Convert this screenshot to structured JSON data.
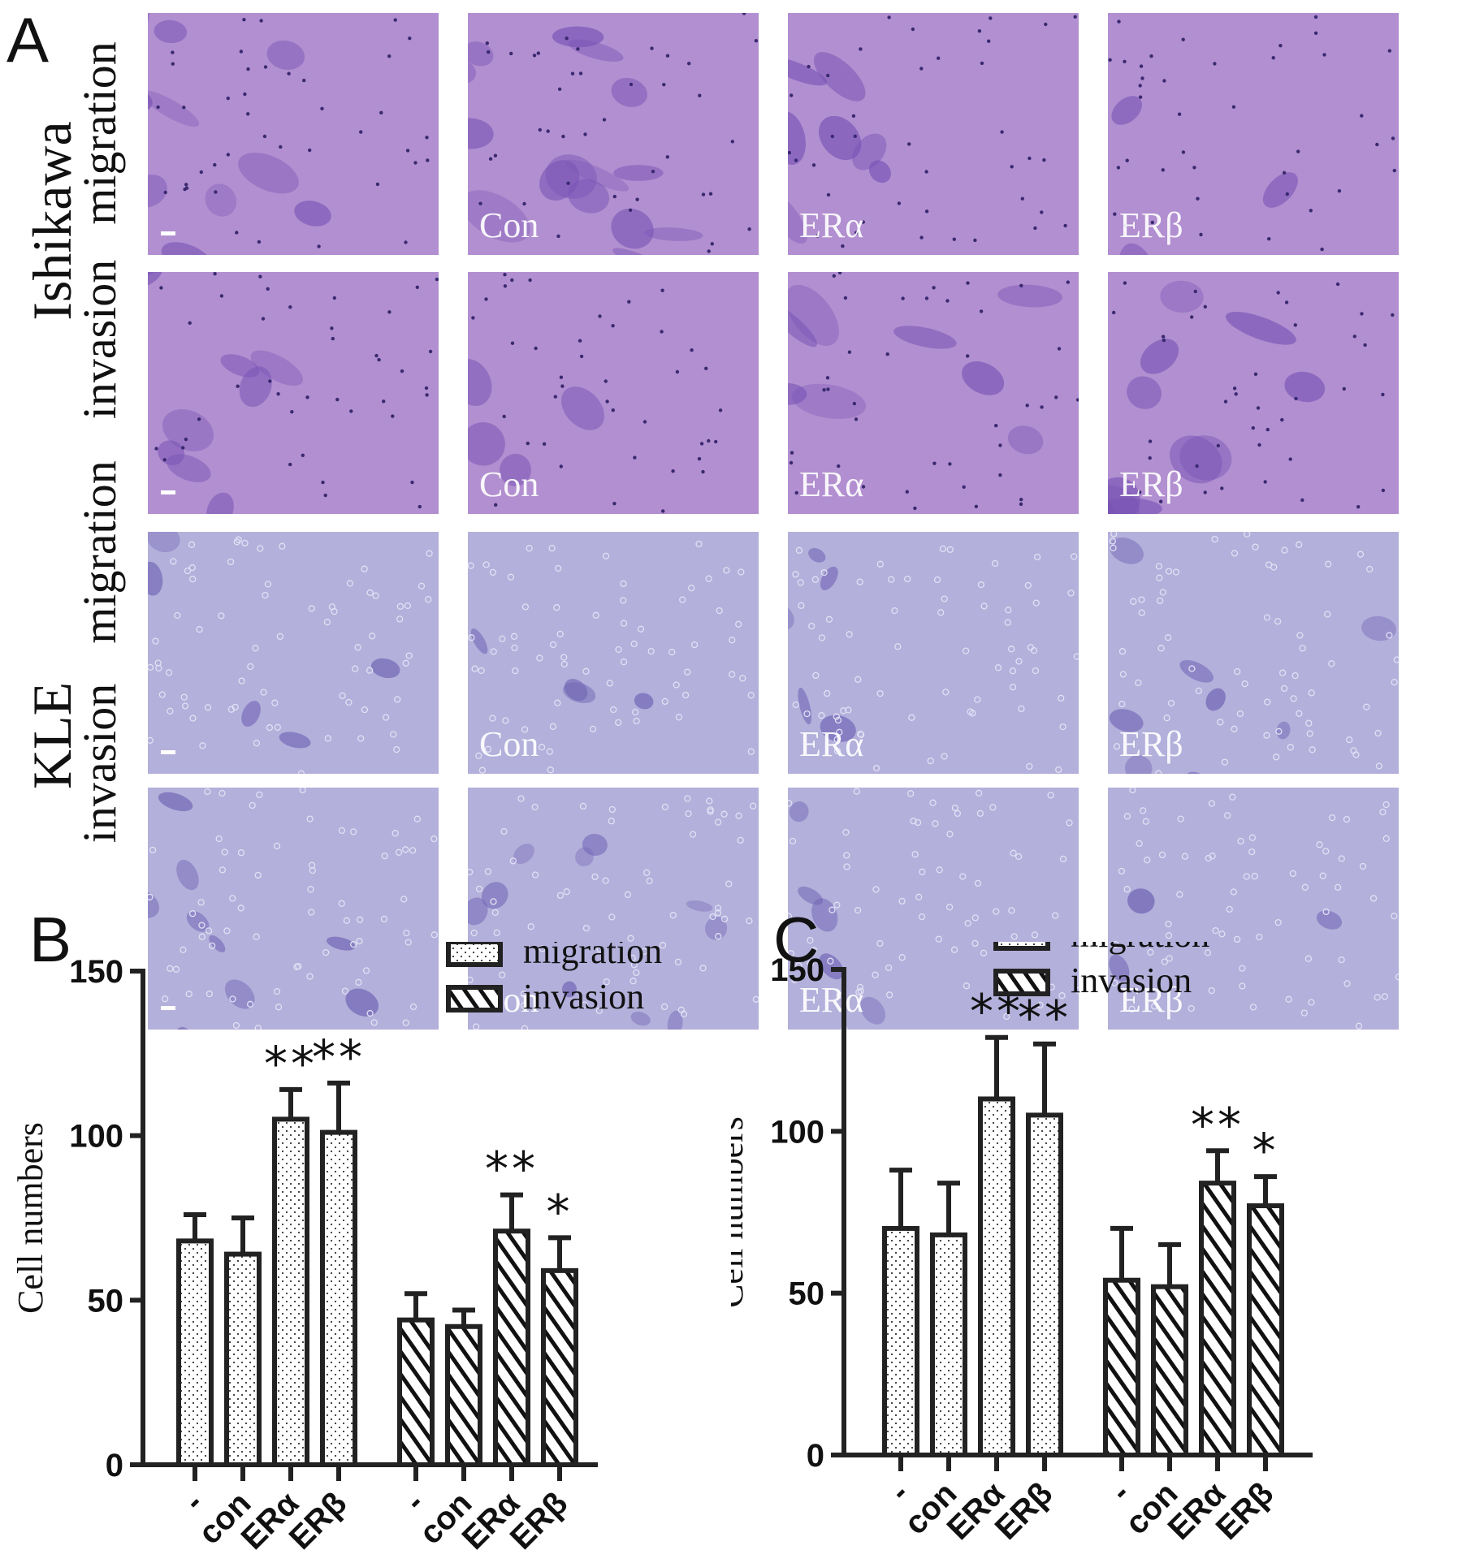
{
  "panel_a": {
    "letter": "A",
    "cell_lines": [
      {
        "name": "Ishikawa",
        "assays": [
          "migration",
          "invasion"
        ]
      },
      {
        "name": "KLE",
        "assays": [
          "migration",
          "invasion"
        ]
      }
    ],
    "conditions": [
      "",
      "Con",
      "ERα",
      "ERβ"
    ],
    "stain_colors": {
      "ishikawa_bg": "#b28fd0",
      "ishikawa_cell": "#7a55b6",
      "kle_bg": "#b3b0db",
      "kle_cell": "#6f63b4"
    }
  },
  "panel_b": {
    "letter": "B"
  },
  "panel_c": {
    "letter": "C"
  },
  "chart_data": [
    {
      "panel": "B",
      "type": "bar",
      "ylabel": "Cell numbers",
      "ylim": [
        0,
        150
      ],
      "yticks": [
        "0",
        "50",
        "100",
        "150"
      ],
      "groups": [
        {
          "name": "migration",
          "pattern": "dots",
          "categories": [
            "-",
            "con",
            "ERα",
            "ERβ"
          ],
          "values": [
            68,
            64,
            105,
            101
          ],
          "errors": [
            8,
            11,
            9,
            15
          ],
          "significance": [
            "",
            "",
            "**",
            "**"
          ]
        },
        {
          "name": "invasion",
          "pattern": "hatch",
          "categories": [
            "-",
            "con",
            "ERα",
            "ERβ"
          ],
          "values": [
            44,
            42,
            71,
            59
          ],
          "errors": [
            8,
            5,
            11,
            10
          ],
          "significance": [
            "",
            "",
            "**",
            "*"
          ]
        }
      ],
      "legend": [
        "migration",
        "invasion"
      ],
      "legend_position": "top-right"
    },
    {
      "panel": "C",
      "type": "bar",
      "ylabel": "Cell numbers",
      "ylim": [
        0,
        150
      ],
      "yticks": [
        "0",
        "50",
        "100",
        "150"
      ],
      "groups": [
        {
          "name": "migration",
          "pattern": "dots",
          "categories": [
            "-",
            "con",
            "ERα",
            "ERβ"
          ],
          "values": [
            70,
            68,
            110,
            105
          ],
          "errors": [
            18,
            16,
            19,
            22
          ],
          "significance": [
            "",
            "",
            "**",
            "**"
          ]
        },
        {
          "name": "invasion",
          "pattern": "hatch",
          "categories": [
            "-",
            "con",
            "ERα",
            "ERβ"
          ],
          "values": [
            54,
            52,
            84,
            77
          ],
          "errors": [
            16,
            13,
            10,
            9
          ],
          "significance": [
            "",
            "",
            "**",
            "*"
          ]
        }
      ],
      "legend": [
        "migration",
        "invasion"
      ],
      "legend_position": "top-right"
    }
  ]
}
